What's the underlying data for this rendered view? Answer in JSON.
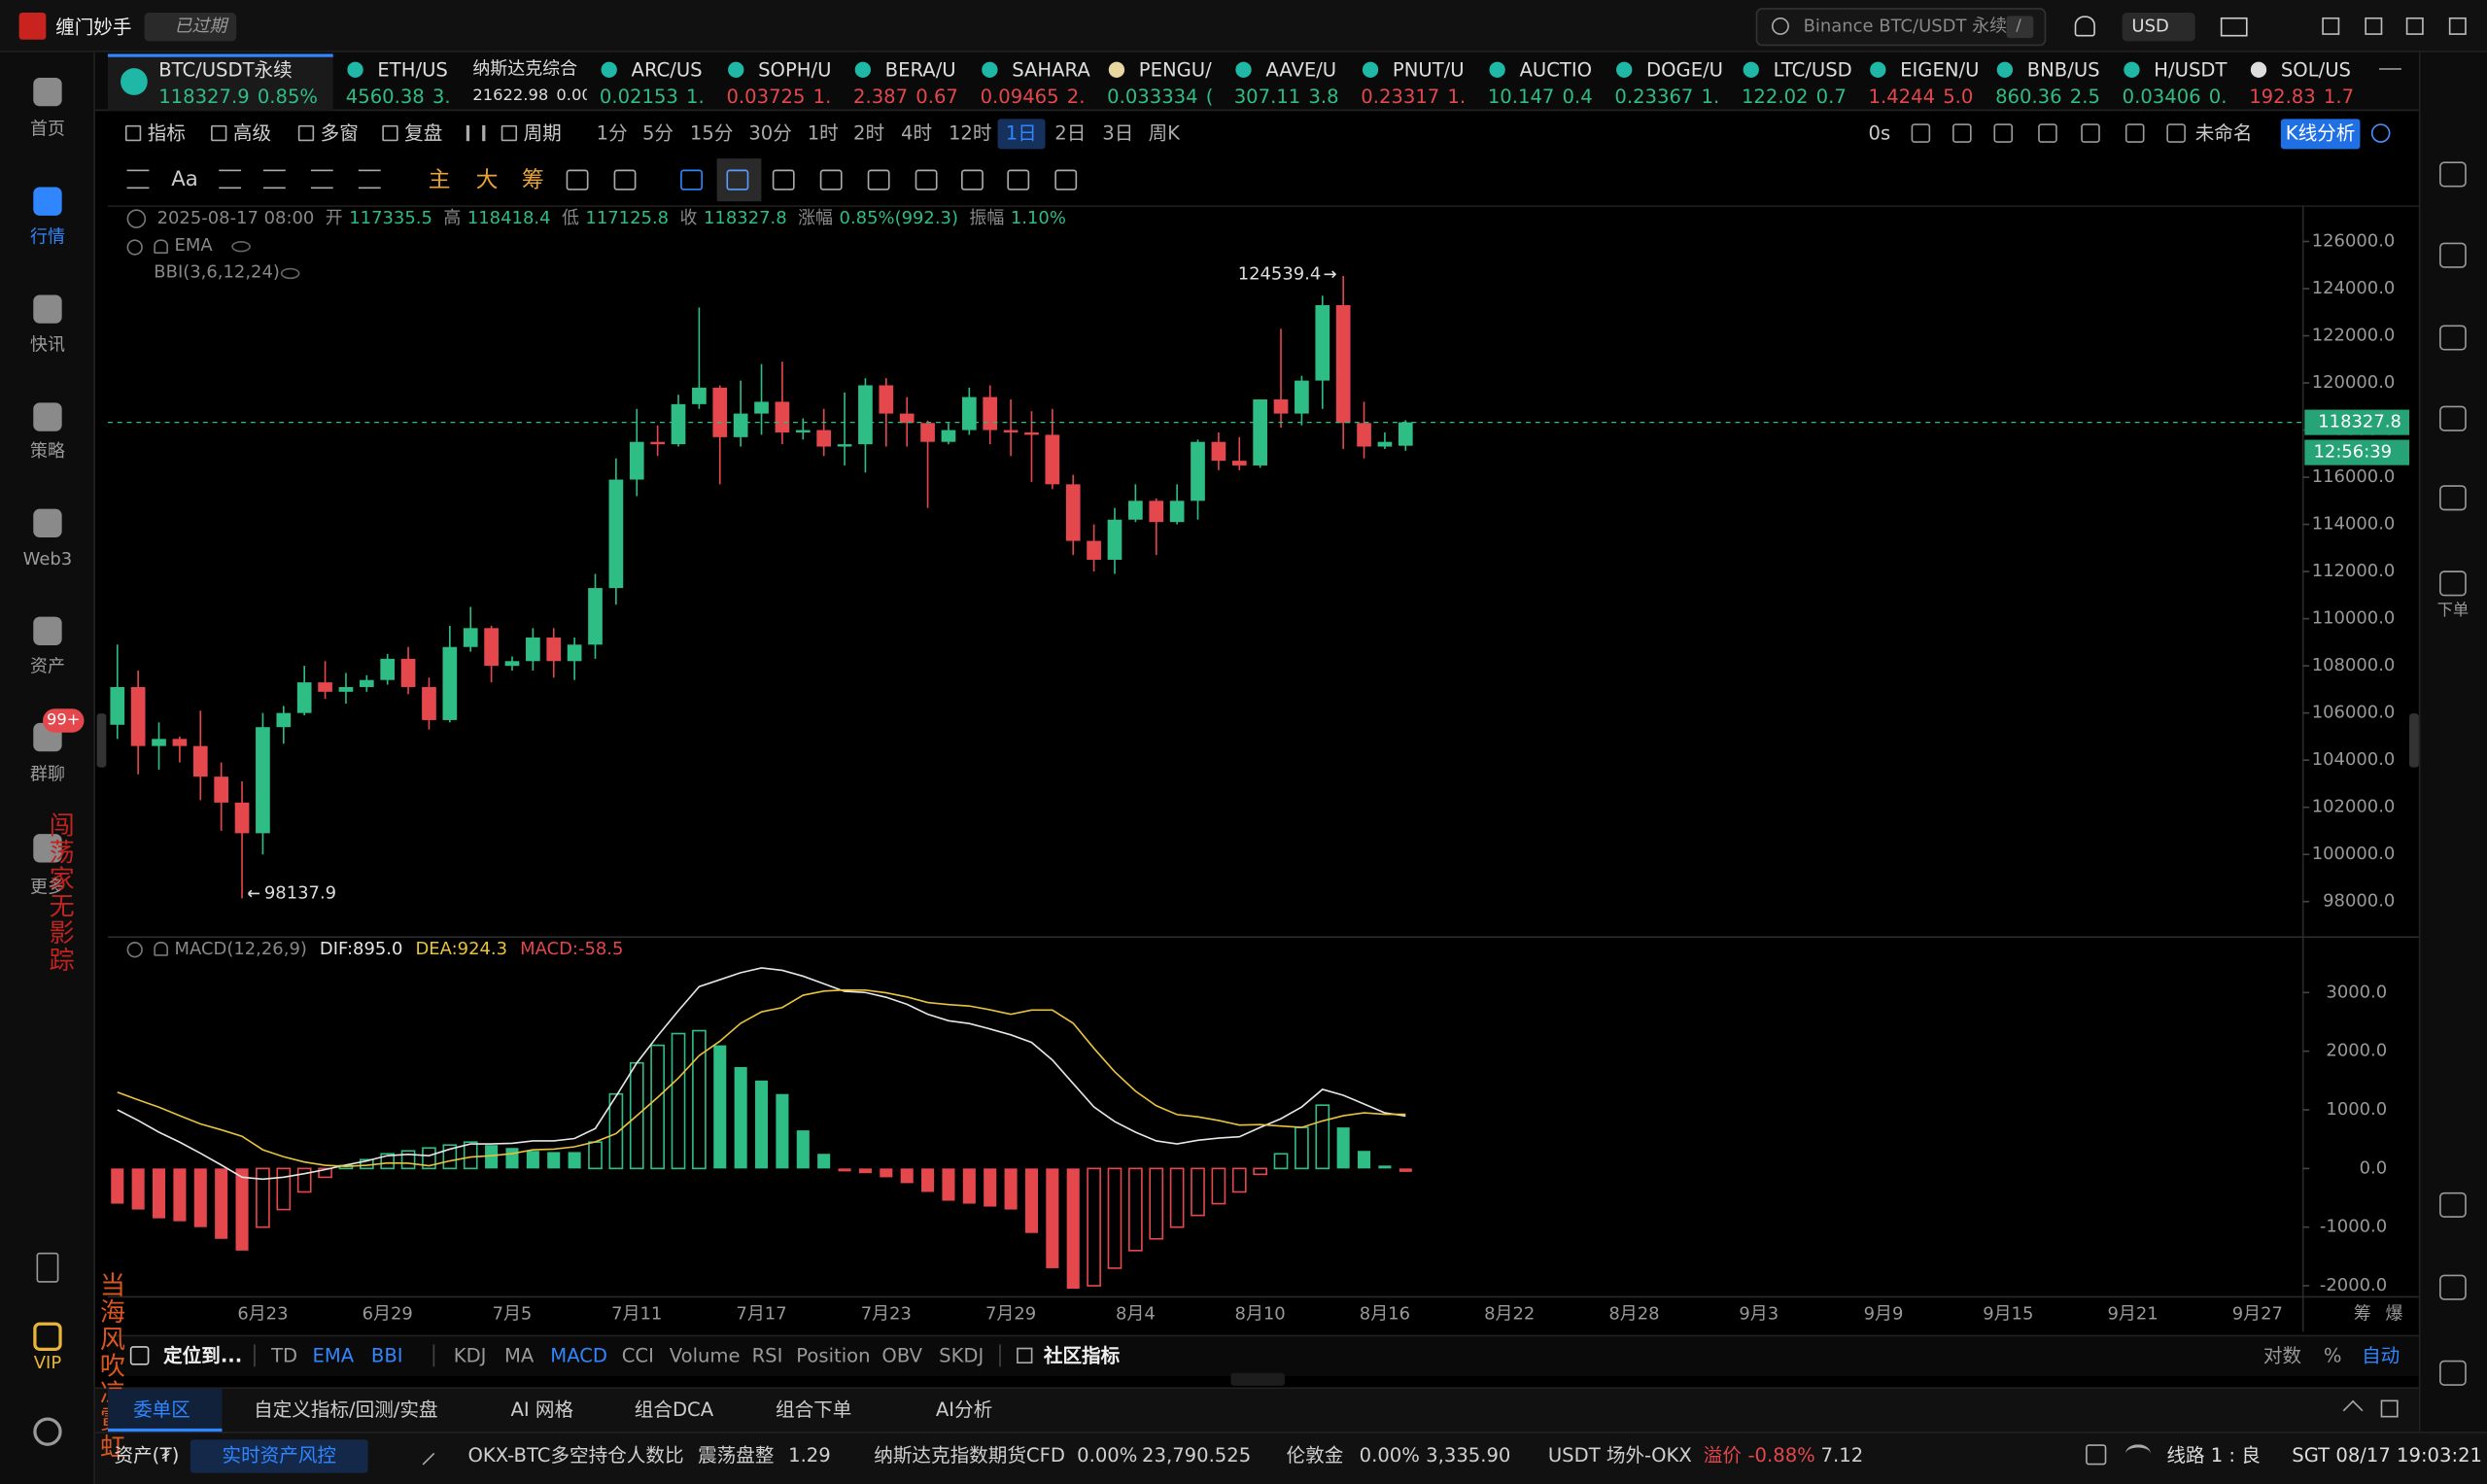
{
  "app": {
    "name": "缠门妙手",
    "status": "已过期",
    "search": "Binance BTC/USDT 永续",
    "search_shortcut": "/",
    "currency": "USD"
  },
  "sidebar": {
    "items": [
      "首页",
      "行情",
      "快讯",
      "策略",
      "Web3",
      "资产",
      "群聊",
      "更多",
      "VIP"
    ],
    "active": 1,
    "badge": "99+",
    "right_label": "下单"
  },
  "watermarks": [
    "闯荡家无影踪",
    "当海风吹凉霓虹"
  ],
  "tickers": [
    {
      "name": "BTC/USDT永续",
      "price": "118327.9",
      "change": "0.85%",
      "trend": "up"
    },
    {
      "name": "ETH/US",
      "price": "4560.38",
      "change": "3.",
      "trend": "up"
    },
    {
      "name": "纳斯达克综合",
      "price": "21622.98",
      "change": "0.00",
      "trend": "flat"
    },
    {
      "name": "ARC/US",
      "price": "0.02153",
      "change": "1.",
      "trend": "up"
    },
    {
      "name": "SOPH/U",
      "price": "0.03725",
      "change": "1.",
      "trend": "down"
    },
    {
      "name": "BERA/U",
      "price": "2.387",
      "change": "0.67",
      "trend": "down"
    },
    {
      "name": "SAHARA",
      "price": "0.09465",
      "change": "2.",
      "trend": "down"
    },
    {
      "name": "PENGU/",
      "price": "0.033334",
      "change": "(",
      "trend": "up"
    },
    {
      "name": "AAVE/U",
      "price": "307.11",
      "change": "3.8",
      "trend": "up"
    },
    {
      "name": "PNUT/U",
      "price": "0.23317",
      "change": "1.",
      "trend": "down"
    },
    {
      "name": "AUCTIO",
      "price": "10.147",
      "change": "0.4",
      "trend": "up"
    },
    {
      "name": "DOGE/U",
      "price": "0.23367",
      "change": "1.",
      "trend": "up"
    },
    {
      "name": "LTC/USD",
      "price": "122.02",
      "change": "0.7",
      "trend": "up"
    },
    {
      "name": "EIGEN/U",
      "price": "1.4244",
      "change": "5.0",
      "trend": "down"
    },
    {
      "name": "BNB/US",
      "price": "860.36",
      "change": "2.5",
      "trend": "up"
    },
    {
      "name": "H/USDT",
      "price": "0.03406",
      "change": "0.",
      "trend": "up"
    },
    {
      "name": "SOL/US",
      "price": "192.83",
      "change": "1.7",
      "trend": "down"
    }
  ],
  "toolbar": {
    "tools": [
      "指标",
      "高级",
      "多窗",
      "复盘",
      "周期"
    ],
    "intervals": [
      "1分",
      "5分",
      "15分",
      "30分",
      "1时",
      "2时",
      "4时",
      "12时",
      "1日",
      "2日",
      "3日",
      "周K"
    ],
    "active_interval": 8,
    "refresh": "0s",
    "layout_name": "未命名",
    "analysis": "K线分析",
    "drawing": [
      "Aa",
      "主",
      "大",
      "筹"
    ]
  },
  "chart": {
    "type": "candlestick",
    "up_color": "#2ebd85",
    "down_color": "#e4474c",
    "time": "2025-08-17 08:00",
    "fields": [
      {
        "label": "开",
        "value": "117335.5"
      },
      {
        "label": "高",
        "value": "118418.4"
      },
      {
        "label": "低",
        "value": "117125.8"
      },
      {
        "label": "收",
        "value": "118327.8"
      },
      {
        "label": "涨幅",
        "value": "0.85%(992.3)"
      },
      {
        "label": "振幅",
        "value": "1.10%"
      }
    ],
    "overlays": [
      "EMA",
      "BBI(3,6,12,24)"
    ],
    "open": [
      105500,
      107100,
      104600,
      104900,
      104600,
      103300,
      102200,
      100900,
      105400,
      106000,
      107300,
      106900,
      107100,
      107400,
      108300,
      107100,
      105700,
      108800,
      109600,
      108000,
      108200,
      109200,
      108200,
      108900,
      111300,
      115900,
      117500,
      117400,
      119100,
      119800,
      117700,
      118700,
      119200,
      117900,
      118000,
      117300,
      117400,
      119900,
      118700,
      118300,
      117500,
      118000,
      119400,
      118000,
      117900,
      117800,
      115700,
      113300,
      112500,
      114200,
      115000,
      114100,
      115000,
      117500,
      116700,
      116500,
      119300,
      118700,
      120100,
      123300,
      118300,
      117300,
      117335.5
    ],
    "high": [
      108900,
      107800,
      105600,
      105000,
      106100,
      103900,
      103100,
      106000,
      106300,
      108000,
      108200,
      107700,
      107600,
      108500,
      108800,
      107500,
      109700,
      110500,
      109700,
      108400,
      109600,
      109600,
      109200,
      111900,
      116800,
      118900,
      118200,
      119500,
      123200,
      119900,
      120100,
      120800,
      120900,
      118500,
      118900,
      119600,
      120200,
      120200,
      119400,
      118400,
      118300,
      119800,
      119900,
      119300,
      118800,
      118900,
      116100,
      114000,
      114700,
      115700,
      115100,
      115700,
      117600,
      117900,
      117700,
      119300,
      122300,
      120300,
      123700,
      124539.4,
      119200,
      117900,
      118418.4
    ],
    "low": [
      104900,
      103400,
      103600,
      103900,
      102300,
      101000,
      98137.9,
      100000,
      104700,
      105900,
      106600,
      106400,
      106900,
      107200,
      106800,
      105300,
      105600,
      108600,
      107300,
      107800,
      107800,
      107500,
      107400,
      108300,
      110600,
      115200,
      116900,
      117300,
      118900,
      115700,
      117300,
      117800,
      117400,
      117600,
      116900,
      116500,
      116200,
      117300,
      117300,
      114700,
      117400,
      117800,
      117400,
      116900,
      115800,
      115500,
      112700,
      112000,
      111900,
      114100,
      112700,
      114000,
      114200,
      116300,
      116300,
      116400,
      118100,
      118200,
      118900,
      117200,
      116800,
      117200,
      117125.8
    ],
    "close": [
      107100,
      104600,
      104900,
      104600,
      103300,
      102200,
      100900,
      105400,
      106000,
      107300,
      106900,
      107100,
      107400,
      108300,
      107100,
      105700,
      108800,
      109600,
      108000,
      108200,
      109200,
      108200,
      108900,
      111300,
      115900,
      117500,
      117400,
      119100,
      119800,
      117700,
      118700,
      119200,
      117900,
      118000,
      117300,
      117400,
      119900,
      118700,
      118300,
      117500,
      118000,
      119400,
      118000,
      117900,
      117800,
      115700,
      113300,
      112500,
      114200,
      115000,
      114100,
      115000,
      117500,
      116700,
      116500,
      119300,
      118700,
      120100,
      123300,
      118300,
      117300,
      117500,
      118327.8
    ],
    "ylim": [
      96700,
      127500
    ],
    "yticks": [
      {
        "value": 126000,
        "label": "126000.0"
      },
      {
        "value": 124000,
        "label": "124000.0"
      },
      {
        "value": 122000,
        "label": "122000.0"
      },
      {
        "value": 120000,
        "label": "120000.0"
      },
      {
        "value": 118000,
        "label": "118000.0"
      },
      {
        "value": 116000,
        "label": "116000.0"
      },
      {
        "value": 114000,
        "label": "114000.0"
      },
      {
        "value": 112000,
        "label": "112000.0"
      },
      {
        "value": 110000,
        "label": "110000.0"
      },
      {
        "value": 108000,
        "label": "108000.0"
      },
      {
        "value": 106000,
        "label": "106000.0"
      },
      {
        "value": 104000,
        "label": "104000.0"
      },
      {
        "value": 102000,
        "label": "102000.0"
      },
      {
        "value": 100000,
        "label": "100000.0"
      },
      {
        "value": 98000,
        "label": "98000.0"
      }
    ],
    "last_price": {
      "value": 118327.8,
      "label": "118327.8"
    },
    "countdown": "12:56:39",
    "max_label": {
      "value": 124539.4,
      "label": "124539.4"
    },
    "min_label": {
      "value": 98137.9,
      "label": "98137.9"
    },
    "dates": [
      "6月23",
      "6月29",
      "7月5",
      "7月11",
      "7月17",
      "7月23",
      "7月29",
      "8月4",
      "8月10",
      "8月16",
      "8月22",
      "8月28",
      "9月3",
      "9月9",
      "9月15",
      "9月21",
      "9月27"
    ],
    "axis_corner": [
      "筹",
      "爆"
    ],
    "macd": {
      "title": "MACD(12,26,9)",
      "readout": [
        {
          "text": "DIF:895.0",
          "color": "#e6e6e6"
        },
        {
          "text": "DEA:924.3",
          "color": "#e8c33c"
        },
        {
          "text": "MACD:-58.5",
          "color": "#e4474c"
        }
      ],
      "ylim": [
        -2190,
        3920
      ],
      "yticks": [
        {
          "value": 3000,
          "label": "3000.0"
        },
        {
          "value": 2000,
          "label": "2000.0"
        },
        {
          "value": 1000,
          "label": "1000.0"
        },
        {
          "value": 0,
          "label": "0.0"
        },
        {
          "value": -1000,
          "label": "-1000.0"
        },
        {
          "value": -2000,
          "label": "-2000.0"
        }
      ],
      "dif": {
        "color": "#e6e6e6",
        "values": [
          1000,
          820,
          620,
          450,
          260,
          60,
          -150,
          -180,
          -150,
          -90,
          -20,
          60,
          130,
          220,
          240,
          220,
          330,
          420,
          420,
          430,
          470,
          470,
          510,
          680,
          1230,
          1800,
          2260,
          2690,
          3100,
          3220,
          3340,
          3420,
          3380,
          3280,
          3150,
          3020,
          3000,
          2920,
          2800,
          2630,
          2520,
          2470,
          2380,
          2280,
          2150,
          1850,
          1450,
          1050,
          800,
          620,
          470,
          420,
          480,
          520,
          540,
          700,
          850,
          1050,
          1350,
          1250,
          1100,
          950,
          895
        ]
      },
      "dea": {
        "color": "#e8c33c",
        "values": [
          1300,
          1170,
          1045,
          900,
          760,
          660,
          550,
          320,
          200,
          110,
          55,
          35,
          55,
          95,
          90,
          45,
          130,
          195,
          220,
          255,
          320,
          330,
          370,
          455,
          595,
          900,
          1210,
          1540,
          1925,
          2170,
          2475,
          2670,
          2745,
          2955,
          3025,
          3045,
          3040,
          2995,
          2925,
          2830,
          2795,
          2770,
          2705,
          2630,
          2700,
          2700,
          2475,
          2050,
          1650,
          1320,
          1070,
          920,
          880,
          820,
          740,
          750,
          725,
          700,
          810,
          900,
          950,
          925,
          924.3
        ]
      },
      "hist": [
        -600,
        -700,
        -850,
        -900,
        -1000,
        -1200,
        -1400,
        -1000,
        -700,
        -400,
        -150,
        50,
        150,
        250,
        300,
        350,
        400,
        450,
        400,
        350,
        300,
        280,
        280,
        450,
        1270,
        1800,
        2100,
        2300,
        2350,
        2100,
        1730,
        1500,
        1270,
        650,
        250,
        -50,
        -80,
        -150,
        -250,
        -400,
        -550,
        -600,
        -650,
        -700,
        -1100,
        -1700,
        -2050,
        -2000,
        -1700,
        -1400,
        -1200,
        -1000,
        -800,
        -600,
        -400,
        -100,
        250,
        700,
        1080,
        700,
        300,
        50,
        -58.5
      ]
    }
  },
  "indicators": {
    "locate": "定位到...",
    "main": [
      {
        "name": "TD",
        "on": false
      },
      {
        "name": "EMA",
        "on": true
      },
      {
        "name": "BBI",
        "on": true
      }
    ],
    "sub": [
      {
        "name": "KDJ",
        "on": false
      },
      {
        "name": "MA",
        "on": false
      },
      {
        "name": "MACD",
        "on": true
      },
      {
        "name": "CCI",
        "on": false
      },
      {
        "name": "Volume",
        "on": false
      },
      {
        "name": "RSI",
        "on": false
      },
      {
        "name": "Position",
        "on": false
      },
      {
        "name": "OBV",
        "on": false
      },
      {
        "name": "SKDJ",
        "on": false
      }
    ],
    "community": "社区指标",
    "scale": [
      {
        "name": "对数",
        "on": false
      },
      {
        "name": "%",
        "on": false
      },
      {
        "name": "自动",
        "on": true
      }
    ]
  },
  "tabs": {
    "items": [
      "委单区",
      "自定义指标/回测/实盘",
      "AI 网格",
      "组合DCA",
      "组合下单",
      "AI分析"
    ],
    "active": 0
  },
  "status": {
    "asset": "资产(₮)",
    "risk": "实时资产风控",
    "items": [
      {
        "text": "OKX-BTC多空持仓人数比",
        "color": "#cfcfcf"
      },
      {
        "text": "震荡盘整",
        "color": "#cfcfcf"
      },
      {
        "text": "1.29",
        "color": "#cfcfcf"
      },
      {
        "text": "纳斯达克指数期货CFD",
        "color": "#cfcfcf"
      },
      {
        "text": "0.00%",
        "color": "#cfcfcf"
      },
      {
        "text": "23,790.525",
        "color": "#cfcfcf"
      },
      {
        "text": "伦敦金",
        "color": "#cfcfcf"
      },
      {
        "text": "0.00%",
        "color": "#cfcfcf"
      },
      {
        "text": "3,335.90",
        "color": "#cfcfcf"
      },
      {
        "text": "USDT 场外-OKX",
        "color": "#cfcfcf"
      },
      {
        "text": "溢价",
        "color": "#e4474c"
      },
      {
        "text": "-0.88%",
        "color": "#e4474c"
      },
      {
        "text": "7.12",
        "color": "#cfcfcf"
      }
    ],
    "line": "线路 1 : 良",
    "clock": "SGT 08/17 19:03:21"
  }
}
